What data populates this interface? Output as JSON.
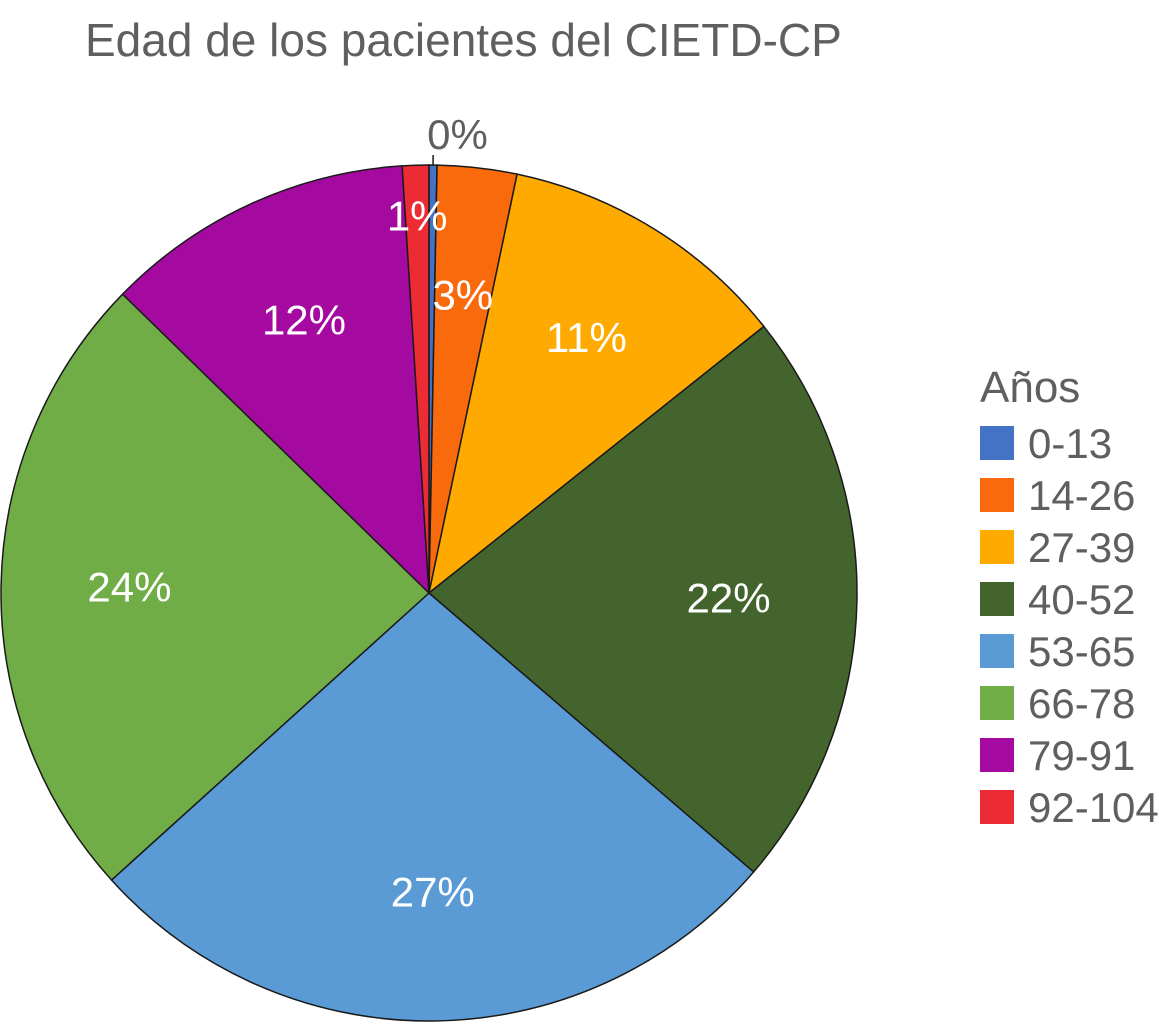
{
  "chart_data": {
    "type": "pie",
    "title": "Edad de los pacientes del CIETD-CP",
    "legend_title": "Años",
    "legend_position": "right",
    "start_angle_deg": 0,
    "direction": "clockwise",
    "slices": [
      {
        "label": "0-13",
        "value": 0.3,
        "display": "0%",
        "color": "#4472c4"
      },
      {
        "label": "14-26",
        "value": 3,
        "display": "3%",
        "color": "#f96a0d"
      },
      {
        "label": "27-39",
        "value": 11,
        "display": "11%",
        "color": "#ffaa00"
      },
      {
        "label": "40-52",
        "value": 22,
        "display": "22%",
        "color": "#44642e"
      },
      {
        "label": "53-65",
        "value": 27,
        "display": "27%",
        "color": "#5b9bd5"
      },
      {
        "label": "66-78",
        "value": 24,
        "display": "24%",
        "color": "#70ad47"
      },
      {
        "label": "79-91",
        "value": 11.7,
        "display": "12%",
        "color": "#a50aa0"
      },
      {
        "label": "92-104",
        "value": 1,
        "display": "1%",
        "color": "#ec2b35"
      }
    ]
  }
}
